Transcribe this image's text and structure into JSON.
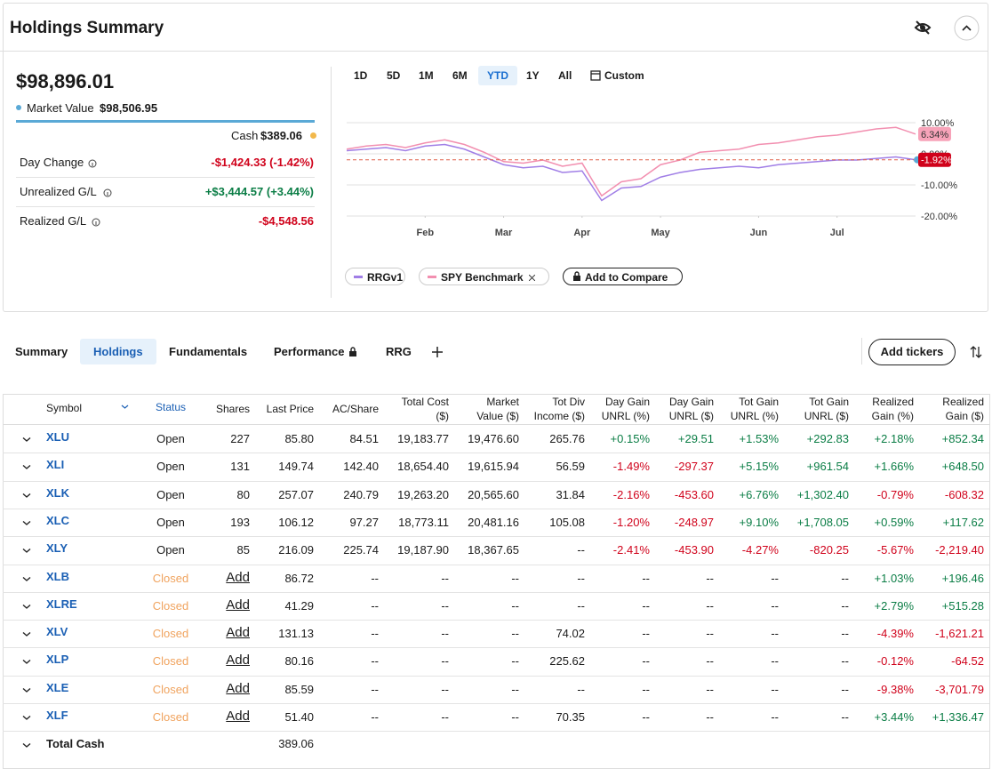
{
  "header": {
    "title": "Holdings Summary"
  },
  "summary": {
    "total": "$98,896.01",
    "market_value_label": "Market Value",
    "market_value": "$98,506.95",
    "cash_label": "Cash",
    "cash": "$389.06",
    "rows": [
      [
        "Day Change",
        "-$1,424.33 (-1.42%)"
      ],
      [
        "Unrealized G/L",
        "+$3,444.57 (+3.44%)"
      ],
      [
        "Realized G/L",
        "-$4,548.56"
      ]
    ]
  },
  "range_buttons": [
    "1D",
    "5D",
    "1M",
    "6M",
    "YTD",
    "1Y",
    "All",
    "Custom"
  ],
  "active_range": "YTD",
  "chart_data": {
    "type": "line",
    "xlim": [
      0,
      29
    ],
    "xticks": [
      {
        "value": 4,
        "label": "Feb"
      },
      {
        "value": 8,
        "label": "Mar"
      },
      {
        "value": 12,
        "label": "Apr"
      },
      {
        "value": 16,
        "label": "May"
      },
      {
        "value": 21,
        "label": "Jun"
      },
      {
        "value": 25,
        "label": "Jul"
      }
    ],
    "ylim": [
      -20,
      10
    ],
    "yticks": [
      {
        "value": 10,
        "label": "10.00%"
      },
      {
        "value": 0,
        "label": "0.00%"
      },
      {
        "value": -10,
        "label": "-10.00%"
      },
      {
        "value": -20,
        "label": "-20.00%"
      }
    ],
    "grid": true,
    "series": [
      {
        "name": "RRGv1",
        "color": "#a07ee6",
        "label_color": "#d0021b",
        "values": [
          1.0,
          1.5,
          2.0,
          1.0,
          2.5,
          3.0,
          1.5,
          -1.0,
          -3.5,
          -4.5,
          -4.0,
          -6.0,
          -5.5,
          -15.0,
          -11.0,
          -10.5,
          -7.5,
          -6.0,
          -5.0,
          -4.5,
          -4.0,
          -4.5,
          -3.5,
          -3.0,
          -2.5,
          -2.0,
          -2.0,
          -1.5,
          -1.0,
          -1.92
        ],
        "value_labels": [
          null,
          null,
          null,
          null,
          null,
          null,
          null,
          null,
          null,
          null,
          null,
          null,
          null,
          null,
          null,
          null,
          null,
          null,
          null,
          null,
          null,
          null,
          null,
          null,
          null,
          null,
          null,
          null,
          null,
          "-1.92%"
        ]
      },
      {
        "name": "SPY Benchmark",
        "color": "#f28fb0",
        "label_color": "#f7a3b9",
        "values": [
          1.5,
          2.5,
          3.0,
          2.0,
          3.5,
          4.5,
          3.0,
          0.5,
          -2.5,
          -3.0,
          -2.0,
          -4.0,
          -3.0,
          -13.5,
          -9.0,
          -8.0,
          -3.5,
          -2.0,
          0.5,
          1.0,
          1.5,
          3.0,
          3.5,
          4.5,
          5.5,
          6.0,
          7.0,
          8.0,
          8.5,
          6.34
        ],
        "value_labels": [
          null,
          null,
          null,
          null,
          null,
          null,
          null,
          null,
          null,
          null,
          null,
          null,
          null,
          null,
          null,
          null,
          null,
          null,
          null,
          null,
          null,
          null,
          null,
          null,
          null,
          null,
          null,
          null,
          null,
          "6.34%"
        ]
      }
    ]
  },
  "add_compare": "Add to Compare",
  "tabs": [
    "Summary",
    "Holdings",
    "Fundamentals",
    "Performance",
    "RRG"
  ],
  "active_tab": "Holdings",
  "add_tickers": "Add tickers",
  "table": {
    "columns": [
      "Symbol",
      "Status",
      "Shares",
      "Last Price",
      "AC/Share",
      "Total Cost ($)",
      "Market Value ($)",
      "Tot Div Income ($)",
      "Day Gain UNRL (%)",
      "Day Gain UNRL ($)",
      "Tot Gain UNRL (%)",
      "Tot Gain UNRL ($)",
      "Realized Gain (%)",
      "Realized Gain ($)"
    ],
    "rows": [
      [
        "XLU",
        "Open",
        "227",
        "85.80",
        "84.51",
        "19,183.77",
        "19,476.60",
        "265.76",
        "+0.15%",
        "+29.51",
        "+1.53%",
        "+292.83",
        "+2.18%",
        "+852.34"
      ],
      [
        "XLI",
        "Open",
        "131",
        "149.74",
        "142.40",
        "18,654.40",
        "19,615.94",
        "56.59",
        "-1.49%",
        "-297.37",
        "+5.15%",
        "+961.54",
        "+1.66%",
        "+648.50"
      ],
      [
        "XLK",
        "Open",
        "80",
        "257.07",
        "240.79",
        "19,263.20",
        "20,565.60",
        "31.84",
        "-2.16%",
        "-453.60",
        "+6.76%",
        "+1,302.40",
        "-0.79%",
        "-608.32"
      ],
      [
        "XLC",
        "Open",
        "193",
        "106.12",
        "97.27",
        "18,773.11",
        "20,481.16",
        "105.08",
        "-1.20%",
        "-248.97",
        "+9.10%",
        "+1,708.05",
        "+0.59%",
        "+117.62"
      ],
      [
        "XLY",
        "Open",
        "85",
        "216.09",
        "225.74",
        "19,187.90",
        "18,367.65",
        "--",
        "-2.41%",
        "-453.90",
        "-4.27%",
        "-820.25",
        "-5.67%",
        "-2,219.40"
      ],
      [
        "XLB",
        "Closed",
        "Add",
        "86.72",
        "--",
        "--",
        "--",
        "--",
        "--",
        "--",
        "--",
        "--",
        "+1.03%",
        "+196.46"
      ],
      [
        "XLRE",
        "Closed",
        "Add",
        "41.29",
        "--",
        "--",
        "--",
        "--",
        "--",
        "--",
        "--",
        "--",
        "+2.79%",
        "+515.28"
      ],
      [
        "XLV",
        "Closed",
        "Add",
        "131.13",
        "--",
        "--",
        "--",
        "74.02",
        "--",
        "--",
        "--",
        "--",
        "-4.39%",
        "-1,621.21"
      ],
      [
        "XLP",
        "Closed",
        "Add",
        "80.16",
        "--",
        "--",
        "--",
        "225.62",
        "--",
        "--",
        "--",
        "--",
        "-0.12%",
        "-64.52"
      ],
      [
        "XLE",
        "Closed",
        "Add",
        "85.59",
        "--",
        "--",
        "--",
        "--",
        "--",
        "--",
        "--",
        "--",
        "-9.38%",
        "-3,701.79"
      ],
      [
        "XLF",
        "Closed",
        "Add",
        "51.40",
        "--",
        "--",
        "--",
        "70.35",
        "--",
        "--",
        "--",
        "--",
        "+3.44%",
        "+1,336.47"
      ]
    ],
    "total": [
      "Total Cash",
      "389.06"
    ]
  }
}
